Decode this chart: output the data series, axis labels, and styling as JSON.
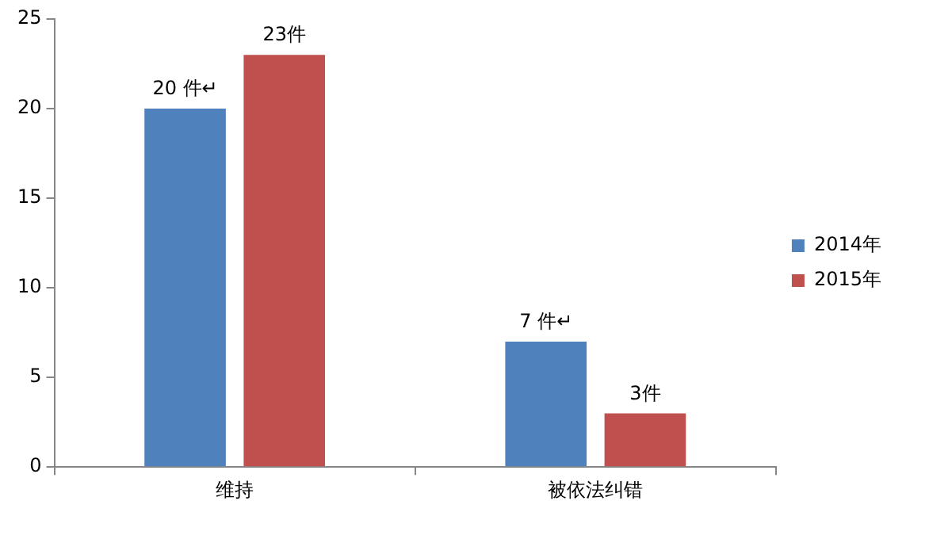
{
  "chart_data": {
    "type": "bar",
    "categories": [
      "维持",
      "被依法纠错"
    ],
    "series": [
      {
        "name": "2014年",
        "color": "#4f81bd",
        "values": [
          20,
          7
        ],
        "value_labels": [
          "20 件↵",
          "7 件↵"
        ]
      },
      {
        "name": "2015年",
        "color": "#c0504d",
        "values": [
          23,
          3
        ],
        "value_labels": [
          "23件",
          "3件"
        ]
      }
    ],
    "ylim": [
      0,
      25
    ],
    "yticks": [
      0,
      5,
      10,
      15,
      20,
      25
    ],
    "grid": false,
    "legend": "right"
  }
}
